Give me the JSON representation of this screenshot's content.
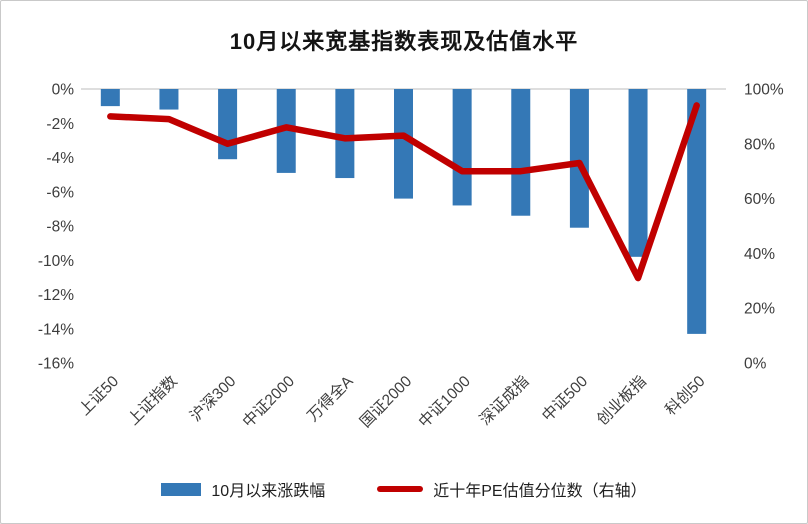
{
  "chart_data": {
    "type": "bar",
    "subtype": "combo-bar-line",
    "title": "10月以来宽基指数表现及估值水平",
    "categories": [
      "上证50",
      "上证指数",
      "沪深300",
      "中证2000",
      "万得全A",
      "国证2000",
      "中证1000",
      "深证成指",
      "中证500",
      "创业板指",
      "科创50"
    ],
    "series": [
      {
        "name": "10月以来涨跌幅",
        "type": "bar",
        "axis": "left",
        "values": [
          -1.0,
          -1.2,
          -4.1,
          -4.9,
          -5.2,
          -6.4,
          -6.8,
          -7.4,
          -8.1,
          -9.8,
          -14.3
        ],
        "color": "#3478B6"
      },
      {
        "name": "近十年PE估值分位数（右轴）",
        "type": "line",
        "axis": "right",
        "values": [
          90,
          89,
          80,
          86,
          82,
          83,
          70,
          70,
          73,
          31,
          94
        ],
        "color": "#C00000"
      }
    ],
    "left_axis": {
      "min": -16,
      "max": 0,
      "tick_labels": [
        "0%",
        "-2%",
        "-4%",
        "-6%",
        "-8%",
        "-10%",
        "-12%",
        "-14%",
        "-16%"
      ]
    },
    "right_axis": {
      "min": 0,
      "max": 100,
      "tick_labels": [
        "100%",
        "80%",
        "60%",
        "40%",
        "20%",
        "0%"
      ]
    },
    "grid": "zero-line-only",
    "gridline_color": "#D9D9D9",
    "legend_position": "bottom",
    "xlabel": "",
    "ylabel": ""
  }
}
